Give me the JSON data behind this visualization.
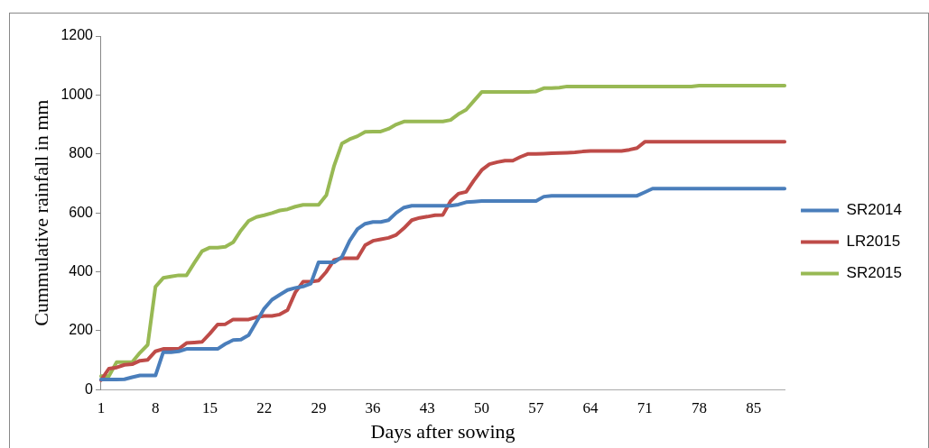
{
  "chart_data": {
    "type": "line",
    "xlabel": "Days after sowing",
    "ylabel": "Cummulative rainfall in mm",
    "categories": [
      "1",
      null,
      null,
      null,
      null,
      null,
      null,
      "8",
      null,
      null,
      null,
      null,
      null,
      null,
      "15",
      null,
      null,
      null,
      null,
      null,
      null,
      "22",
      null,
      null,
      null,
      null,
      null,
      null,
      "29",
      null,
      null,
      null,
      null,
      null,
      null,
      "36",
      null,
      null,
      null,
      null,
      null,
      null,
      "43",
      null,
      null,
      null,
      null,
      null,
      null,
      "50",
      null,
      null,
      null,
      null,
      null,
      null,
      "57",
      null,
      null,
      null,
      null,
      null,
      null,
      "64",
      null,
      null,
      null,
      null,
      null,
      null,
      "71",
      null,
      null,
      null,
      null,
      null,
      null,
      "78",
      null,
      null,
      null,
      null,
      null,
      null,
      "85",
      null,
      null,
      null,
      null
    ],
    "ylim": [
      0,
      1200
    ],
    "yticks": [
      0,
      200,
      400,
      600,
      800,
      1000,
      1200
    ],
    "grid": false,
    "legend": "right",
    "marker": "none",
    "line_style": "solid",
    "series": [
      {
        "name": "SR2014",
        "color": "#4a7ebb",
        "values": [
          34,
          34,
          34,
          35,
          42,
          48,
          48,
          48,
          127,
          127,
          130,
          138,
          138,
          138,
          138,
          138,
          155,
          168,
          170,
          185,
          230,
          275,
          305,
          322,
          338,
          345,
          350,
          360,
          432,
          432,
          432,
          450,
          505,
          545,
          563,
          569,
          569,
          575,
          600,
          618,
          624,
          624,
          624,
          624,
          624,
          624,
          628,
          636,
          638,
          640,
          640,
          640,
          640,
          640,
          640,
          640,
          640,
          655,
          658,
          658,
          658,
          658,
          658,
          658,
          658,
          658,
          658,
          658,
          658,
          658,
          670,
          682,
          682,
          682,
          682,
          682,
          682,
          682,
          682,
          682,
          682,
          682,
          682,
          682,
          682,
          682,
          682,
          682,
          682
        ]
      },
      {
        "name": "LR2015",
        "color": "#be4b48",
        "values": [
          32,
          71,
          75,
          84,
          86,
          98,
          101,
          130,
          138,
          138,
          138,
          158,
          160,
          162,
          190,
          221,
          222,
          238,
          238,
          238,
          246,
          250,
          250,
          255,
          270,
          330,
          366,
          366,
          370,
          400,
          440,
          446,
          446,
          446,
          490,
          505,
          510,
          515,
          525,
          548,
          575,
          583,
          587,
          592,
          593,
          640,
          665,
          671,
          710,
          745,
          765,
          772,
          777,
          777,
          790,
          800,
          800,
          801,
          802,
          803,
          804,
          805,
          808,
          810,
          810,
          810,
          810,
          810,
          814,
          820,
          841,
          841,
          841,
          841,
          841,
          841,
          841,
          841,
          841,
          841,
          841,
          841,
          841,
          841,
          841,
          841,
          841,
          841,
          841
        ]
      },
      {
        "name": "SR2015",
        "color": "#98b954",
        "values": [
          46,
          46,
          93,
          93,
          93,
          125,
          152,
          349,
          379,
          384,
          388,
          388,
          430,
          470,
          482,
          482,
          485,
          500,
          540,
          573,
          586,
          592,
          599,
          608,
          612,
          621,
          627,
          627,
          627,
          660,
          760,
          835,
          850,
          860,
          875,
          876,
          876,
          885,
          900,
          910,
          910,
          910,
          910,
          910,
          910,
          915,
          935,
          950,
          980,
          1010,
          1010,
          1010,
          1010,
          1010,
          1010,
          1010,
          1012,
          1023,
          1023,
          1025,
          1029,
          1029,
          1029,
          1029,
          1029,
          1029,
          1029,
          1029,
          1029,
          1029,
          1029,
          1029,
          1029,
          1029,
          1029,
          1029,
          1029,
          1032,
          1032,
          1032,
          1032,
          1032,
          1032,
          1032,
          1032,
          1032,
          1032,
          1032,
          1032
        ]
      }
    ]
  }
}
